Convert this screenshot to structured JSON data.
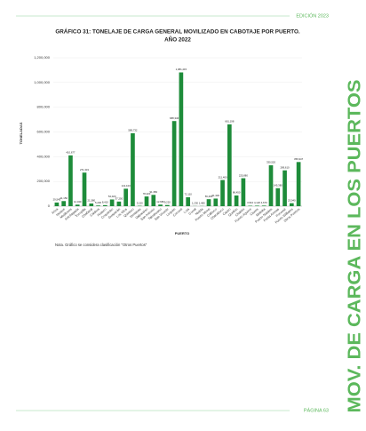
{
  "header": {
    "edition": "EDICIÓN 2023",
    "section": "MOV. DE CARGA EN LOS PUERTOS",
    "page": "PÁGINA 63"
  },
  "note": "Nota. Gráfico se considera clasificación \"Otros Puertos\"",
  "chart_data": {
    "type": "bar",
    "title": "GRÁFICO 31: TONELAJE DE CARGA GENERAL MOVILIZADO EN CABOTAJE POR PUERTO.",
    "subtitle": "AÑO 2022",
    "x_label": "PUERTO",
    "y_label": "TONELADAS",
    "color": "#1e8c3a",
    "categories": [
      "Arica",
      "Iquique",
      "Mejillones",
      "Antofagasta",
      "Tocopilla",
      "Chañaral",
      "Caldera",
      "Huasco",
      "Coquimbo",
      "Guayacán",
      "Los Vilos",
      "Quintero",
      "Ventanas",
      "Valparaíso",
      "San Antonio",
      "Talcahuano",
      "San Vicente",
      "Lirquén",
      "Coronel",
      "Lota",
      "Corral",
      "Niebla",
      "Puerto Montt",
      "Calbuco",
      "Chacabuco",
      "Castro",
      "Quellón",
      "Chaitén",
      "Puerto Aguirre",
      "Cisnes",
      "Melinka",
      "Puerto Natales",
      "Punta Arenas",
      "Porvenir",
      "Puerto Williams",
      "Otros Puertos"
    ],
    "values": [
      29545,
      41150,
      410677,
      12340,
      271331,
      21580,
      5230,
      8410,
      54020,
      37250,
      141103,
      589732,
      3150,
      78420,
      91350,
      12680,
      9220,
      688346,
      1081415,
      72110,
      1230,
      1480,
      56290,
      61330,
      211400,
      661198,
      86450,
      225880,
      3510,
      4120,
      4670,
      330520,
      145380,
      289610,
      23940,
      356947
    ],
    "value_labels": [
      "29,545",
      "41,150",
      "410,677",
      "12,340",
      "271,331",
      "21,580",
      "5,230",
      "8,410",
      "54,020",
      "37,250",
      "141,103",
      "589,732",
      "3,150",
      "78,420",
      "91,350",
      "12,680",
      "9,220",
      "688,346",
      "1,081,415",
      "72,110",
      "1,230",
      "1,480",
      "56,290",
      "61,330",
      "211,400",
      "661,198",
      "86,450",
      "225,880",
      "3,510",
      "4,120",
      "4,670",
      "330,520",
      "145,380",
      "289,610",
      "23,940",
      "356,947"
    ],
    "ylim": [
      0,
      1200000
    ],
    "yticks": [
      0,
      {
        "value": 200000,
        "label": "200,000"
      },
      {
        "value": 400000,
        "label": "400,000"
      },
      {
        "value": 600000,
        "label": "600,000"
      },
      {
        "value": 800000,
        "label": "800,000"
      },
      {
        "value": 1000000,
        "label": "1,000,000"
      },
      {
        "value": 1200000,
        "label": "1,200,000"
      }
    ]
  }
}
